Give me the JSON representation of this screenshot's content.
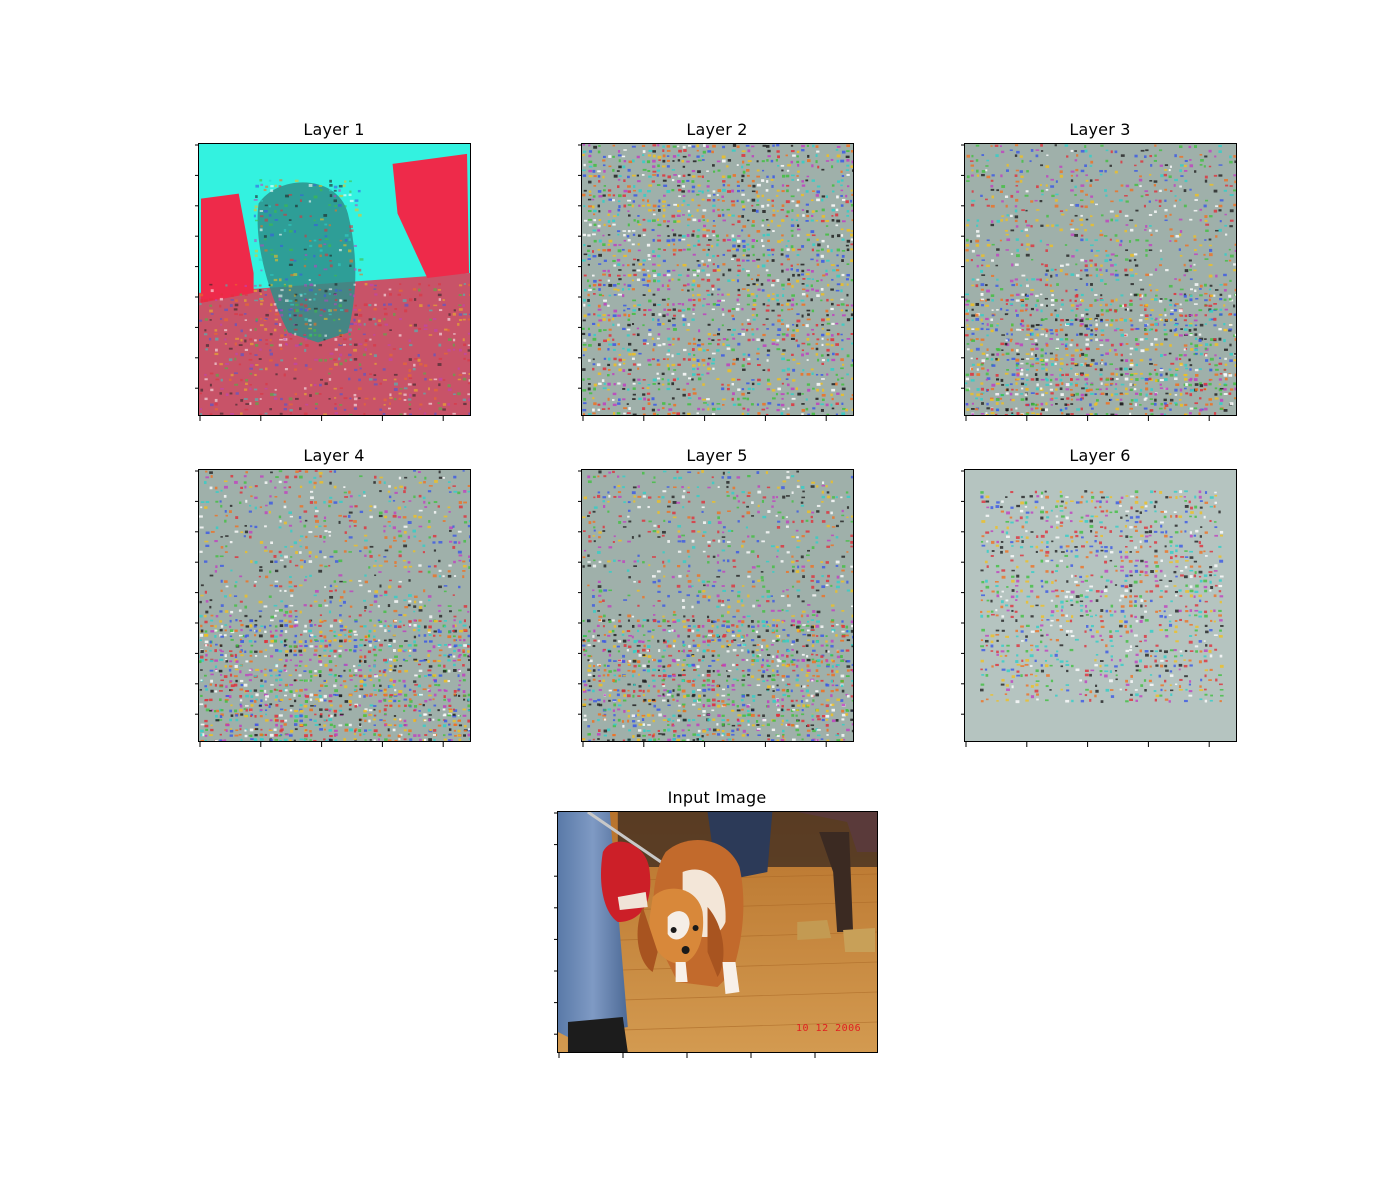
{
  "figure": {
    "panels": [
      {
        "title": "Layer 1",
        "style": "cyan-red"
      },
      {
        "title": "Layer 2",
        "style": "edges"
      },
      {
        "title": "Layer 3",
        "style": "noise"
      },
      {
        "title": "Layer 4",
        "style": "noise"
      },
      {
        "title": "Layer 5",
        "style": "noise"
      },
      {
        "title": "Layer 6",
        "style": "noise-radial"
      }
    ],
    "input": {
      "title": "Input Image",
      "date_stamp": "10 12 2006"
    }
  },
  "colors": {
    "cyan": "#33f2e0",
    "red": "#ee2a4a",
    "gray": "#9fb0aa",
    "wood": "#c48a3e",
    "stamp": "#e02020"
  }
}
